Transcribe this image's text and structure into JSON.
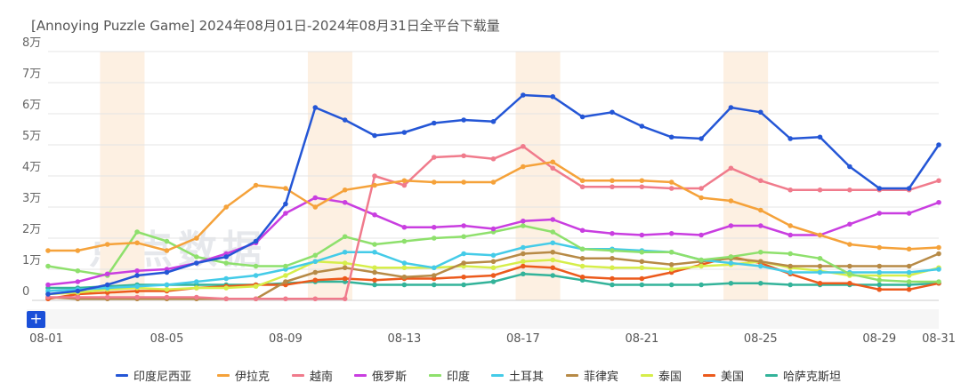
{
  "title": "[Annoying Puzzle Game]  2024年08月01日-2024年08月31日全平台下载量",
  "watermark": "点点数据",
  "zoom_button": "+",
  "chart_data": {
    "type": "line",
    "title": "[Annoying Puzzle Game]  2024年08月01日-2024年08月31日全平台下载量",
    "xlabel": "",
    "ylabel": "",
    "x": [
      "08-01",
      "08-02",
      "08-03",
      "08-04",
      "08-05",
      "08-06",
      "08-07",
      "08-08",
      "08-09",
      "08-10",
      "08-11",
      "08-12",
      "08-13",
      "08-14",
      "08-15",
      "08-16",
      "08-17",
      "08-18",
      "08-19",
      "08-20",
      "08-21",
      "08-22",
      "08-23",
      "08-24",
      "08-25",
      "08-26",
      "08-27",
      "08-28",
      "08-29",
      "08-30",
      "08-31"
    ],
    "x_tick_labels": [
      "08-01",
      "08-05",
      "08-09",
      "08-13",
      "08-17",
      "08-21",
      "08-25",
      "08-29",
      "08-31"
    ],
    "ylim": [
      0,
      80000
    ],
    "y_ticks": [
      0,
      10000,
      20000,
      30000,
      40000,
      50000,
      60000,
      70000,
      80000
    ],
    "y_tick_labels": [
      "0",
      "1万",
      "2万",
      "3万",
      "4万",
      "5万",
      "6万",
      "7万",
      "8万"
    ],
    "weekend_bands": [
      [
        "08-03",
        "08-04"
      ],
      [
        "08-10",
        "08-11"
      ],
      [
        "08-17",
        "08-18"
      ],
      [
        "08-24",
        "08-25"
      ]
    ],
    "band_color": "#fdf0e2",
    "grid": true,
    "legend_position": "bottom",
    "series": [
      {
        "name": "印度尼西亚",
        "color": "#2456d6",
        "values": [
          2000,
          3000,
          5000,
          8000,
          9000,
          12000,
          14000,
          19000,
          31000,
          62000,
          58000,
          53000,
          54000,
          57000,
          58000,
          57500,
          66000,
          65500,
          59000,
          60500,
          56000,
          52500,
          52000,
          62000,
          60500,
          52000,
          52500,
          43000,
          36000,
          36000,
          50000
        ]
      },
      {
        "name": "伊拉克",
        "color": "#f5a23a",
        "values": [
          16000,
          16000,
          18000,
          18500,
          16000,
          20000,
          30000,
          37000,
          36000,
          30000,
          35500,
          37000,
          38500,
          38000,
          38000,
          38000,
          43000,
          44500,
          38500,
          38500,
          38500,
          38000,
          33000,
          32000,
          29000,
          24000,
          21000,
          18000,
          17000,
          16500,
          17000
        ]
      },
      {
        "name": "越南",
        "color": "#f07b8c",
        "values": [
          1000,
          1000,
          1000,
          1000,
          1000,
          1000,
          500,
          500,
          500,
          500,
          500,
          40000,
          37000,
          46000,
          46500,
          45500,
          49500,
          42500,
          36500,
          36500,
          36500,
          36000,
          36000,
          42500,
          38500,
          35500,
          35500,
          35500,
          35500,
          35500,
          38500
        ]
      },
      {
        "name": "俄罗斯",
        "color": "#c93ee0",
        "values": [
          5000,
          6000,
          8500,
          9500,
          10000,
          12000,
          15000,
          18500,
          28000,
          33000,
          31500,
          27500,
          23500,
          23500,
          24000,
          23000,
          25500,
          26000,
          22500,
          21500,
          21000,
          21500,
          21000,
          24000,
          24000,
          21000,
          21000,
          24500,
          28000,
          28000,
          31500
        ]
      },
      {
        "name": "印度",
        "color": "#8ee06c",
        "values": [
          11000,
          9500,
          8000,
          22000,
          19000,
          14000,
          12000,
          11000,
          11000,
          14500,
          20500,
          18000,
          19000,
          20000,
          20500,
          22000,
          24000,
          22000,
          16500,
          16000,
          15500,
          15500,
          13000,
          14000,
          15500,
          15000,
          13500,
          8500,
          6500,
          6000,
          6000
        ]
      },
      {
        "name": "土耳其",
        "color": "#44cbe8",
        "values": [
          3000,
          3500,
          4000,
          4500,
          5000,
          6000,
          7000,
          8000,
          10000,
          12500,
          15500,
          15500,
          12000,
          10500,
          15000,
          14500,
          17000,
          18500,
          16500,
          16500,
          16000,
          15500,
          13000,
          12000,
          11000,
          9000,
          9000,
          9000,
          9000,
          9000,
          10000
        ]
      },
      {
        "name": "菲律宾",
        "color": "#b78a46",
        "values": [
          1000,
          500,
          500,
          500,
          500,
          500,
          500,
          500,
          6000,
          9000,
          10500,
          9000,
          7500,
          8000,
          12000,
          12500,
          15000,
          15500,
          13500,
          13500,
          12500,
          11500,
          12500,
          13500,
          12500,
          11000,
          11000,
          11000,
          11000,
          11000,
          15000
        ]
      },
      {
        "name": "泰国",
        "color": "#d6ee4a",
        "values": [
          2000,
          2500,
          3500,
          4000,
          3500,
          4000,
          4000,
          4500,
          8000,
          12500,
          12000,
          10500,
          10500,
          10500,
          11000,
          10500,
          12500,
          13000,
          11000,
          10500,
          10500,
          10000,
          11000,
          11500,
          12500,
          10500,
          9500,
          8000,
          8000,
          8000,
          10500
        ]
      },
      {
        "name": "美国",
        "color": "#ec5a1c",
        "values": [
          500,
          2000,
          2500,
          3000,
          3000,
          4000,
          4500,
          5000,
          5000,
          6500,
          7000,
          6500,
          7000,
          7000,
          7500,
          8000,
          11000,
          10500,
          7500,
          7000,
          7000,
          9000,
          11500,
          14000,
          12000,
          8500,
          5500,
          5500,
          3500,
          3500,
          5500
        ]
      },
      {
        "name": "哈萨克斯坦",
        "color": "#33b39a",
        "values": [
          4000,
          4000,
          4500,
          5000,
          5000,
          5000,
          5000,
          5000,
          5500,
          6000,
          6000,
          5000,
          5000,
          5000,
          5000,
          6000,
          8500,
          8000,
          6500,
          5000,
          5000,
          5000,
          5000,
          5500,
          5500,
          5000,
          5000,
          5000,
          5000,
          5000,
          5500
        ]
      }
    ]
  }
}
